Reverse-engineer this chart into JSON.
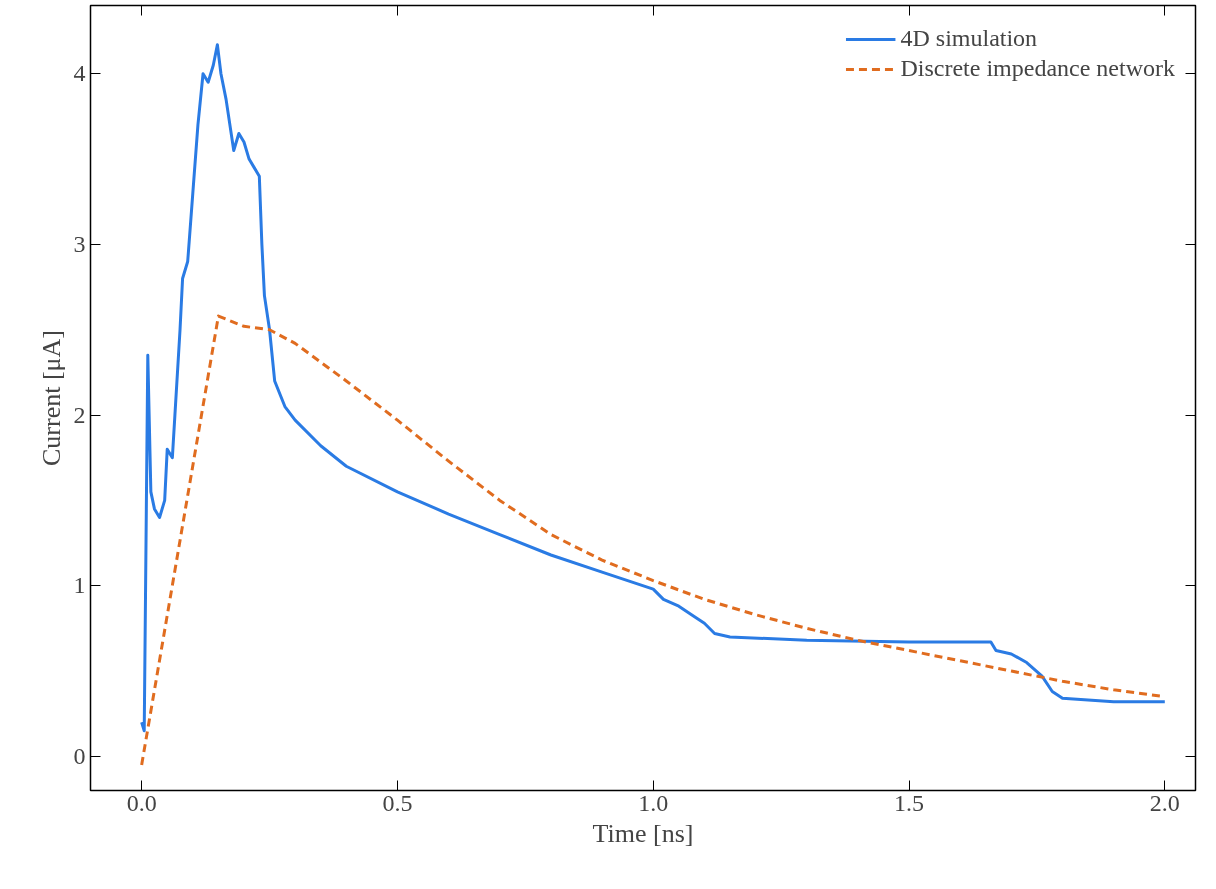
{
  "chart_data": {
    "type": "line",
    "xlabel": "Time [ns]",
    "ylabel": "Current [μA]",
    "xlim": [
      -0.1,
      2.06
    ],
    "ylim": [
      -0.2,
      4.4
    ],
    "xticks": [
      {
        "value": 0,
        "label": "0.0"
      },
      0.5,
      {
        "value": 1,
        "label": "1.0"
      },
      1.5,
      {
        "value": 2,
        "label": "2.0"
      }
    ],
    "yticks": [
      0,
      1,
      2,
      3,
      4
    ],
    "grid": false,
    "legend": "top right",
    "marker": "none",
    "series": [
      {
        "name": "4D simulation",
        "color": "#2a7be4",
        "line_style": "solid",
        "x": [
          0.0,
          0.005,
          0.012,
          0.018,
          0.025,
          0.035,
          0.045,
          0.05,
          0.06,
          0.065,
          0.075,
          0.08,
          0.09,
          0.1,
          0.11,
          0.12,
          0.13,
          0.14,
          0.148,
          0.155,
          0.165,
          0.18,
          0.19,
          0.2,
          0.21,
          0.22,
          0.23,
          0.235,
          0.24,
          0.25,
          0.26,
          0.28,
          0.3,
          0.35,
          0.4,
          0.5,
          0.6,
          0.7,
          0.8,
          0.9,
          1.0,
          1.02,
          1.05,
          1.08,
          1.1,
          1.12,
          1.15,
          1.3,
          1.5,
          1.66,
          1.67,
          1.7,
          1.73,
          1.76,
          1.78,
          1.8,
          1.9,
          2.0
        ],
        "values": [
          0.2,
          0.15,
          2.35,
          1.55,
          1.45,
          1.4,
          1.5,
          1.8,
          1.75,
          2.0,
          2.5,
          2.8,
          2.9,
          3.3,
          3.7,
          4.0,
          3.95,
          4.05,
          4.17,
          4.0,
          3.85,
          3.55,
          3.65,
          3.6,
          3.5,
          3.45,
          3.4,
          3.0,
          2.7,
          2.5,
          2.2,
          2.05,
          1.97,
          1.82,
          1.7,
          1.55,
          1.42,
          1.3,
          1.18,
          1.08,
          0.98,
          0.92,
          0.88,
          0.82,
          0.78,
          0.72,
          0.7,
          0.68,
          0.67,
          0.67,
          0.62,
          0.6,
          0.55,
          0.47,
          0.38,
          0.34,
          0.32,
          0.32
        ]
      },
      {
        "name": "Discrete impedance network",
        "color": "#e06c1f",
        "line_style": "dashed",
        "x": [
          0.0,
          0.15,
          0.2,
          0.25,
          0.3,
          0.4,
          0.5,
          0.6,
          0.7,
          0.8,
          0.9,
          1.0,
          1.1,
          1.2,
          1.3,
          1.4,
          1.5,
          1.6,
          1.7,
          1.8,
          1.9,
          2.0
        ],
        "values": [
          -0.05,
          2.58,
          2.52,
          2.5,
          2.42,
          2.2,
          1.97,
          1.73,
          1.5,
          1.3,
          1.15,
          1.03,
          0.92,
          0.83,
          0.75,
          0.68,
          0.62,
          0.56,
          0.5,
          0.44,
          0.39,
          0.35
        ]
      }
    ]
  }
}
